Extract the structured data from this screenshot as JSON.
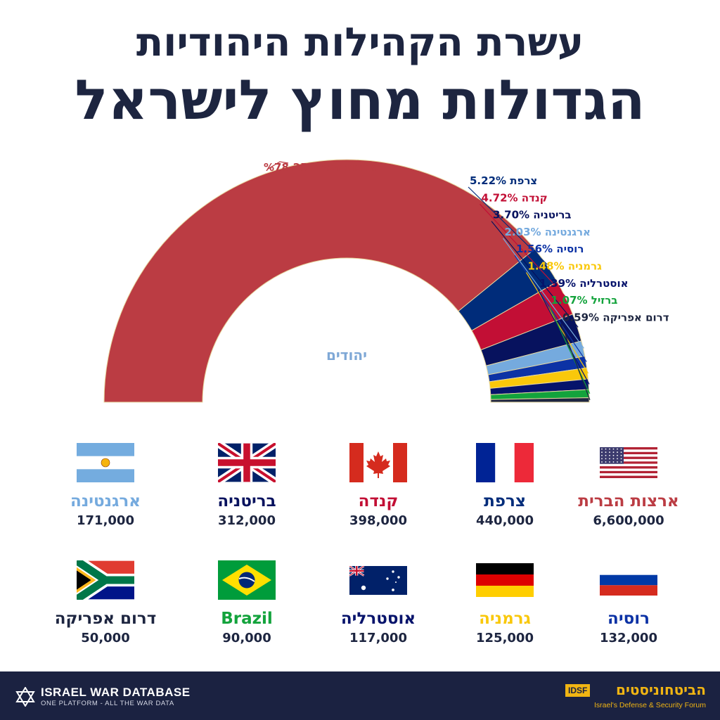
{
  "title": {
    "line1": "עשרת הקהילות היהודיות",
    "line2": "הגדולות מחוץ לישראל"
  },
  "chart_data": {
    "type": "pie",
    "variant": "half-donut",
    "center_label": "יהודים",
    "slices": [
      {
        "name": "ארצות הברית",
        "value": 78.25,
        "label": "%78.25",
        "color": "#bb3c43"
      },
      {
        "name": "צרפת",
        "value": 5.22,
        "label": "%5.22",
        "color": "#002c7a"
      },
      {
        "name": "קנדה",
        "value": 4.72,
        "label": "%4.72",
        "color": "#c20f35"
      },
      {
        "name": "בריטניה",
        "value": 3.7,
        "label": "%3.70",
        "color": "#07125e"
      },
      {
        "name": "ארגנטינה",
        "value": 2.03,
        "label": "%2.03",
        "color": "#75aade"
      },
      {
        "name": "רוסיה",
        "value": 1.56,
        "label": "%1.56",
        "color": "#0c32a5"
      },
      {
        "name": "גרמניה",
        "value": 1.48,
        "label": "%1.48",
        "color": "#f9c80b"
      },
      {
        "name": "אוסטרליה",
        "value": 1.39,
        "label": "%1.39",
        "color": "#06136b"
      },
      {
        "name": "ברזיל",
        "value": 1.07,
        "label": "%1.07",
        "color": "#13a33c"
      },
      {
        "name": "דרום אפריקה",
        "value": 0.59,
        "label": "%0.59",
        "color": "#1d2540"
      }
    ]
  },
  "countries": [
    {
      "name": "ארצות הברית",
      "population": "6,600,000",
      "color": "#bb3c43",
      "flag": "usa-flag-icon"
    },
    {
      "name": "צרפת",
      "population": "440,000",
      "color": "#002c7a",
      "flag": "france-flag-icon"
    },
    {
      "name": "קנדה",
      "population": "398,000",
      "color": "#c20f35",
      "flag": "canada-flag-icon"
    },
    {
      "name": "בריטניה",
      "population": "312,000",
      "color": "#07125e",
      "flag": "uk-flag-icon"
    },
    {
      "name": "ארגנטינה",
      "population": "171,000",
      "color": "#75aade",
      "flag": "argentina-flag-icon"
    },
    {
      "name": "רוסיה",
      "population": "132,000",
      "color": "#0c32a5",
      "flag": "russia-flag-icon"
    },
    {
      "name": "גרמניה",
      "population": "125,000",
      "color": "#f9c80b",
      "flag": "germany-flag-icon"
    },
    {
      "name": "אוסטרליה",
      "population": "117,000",
      "color": "#06136b",
      "flag": "australia-flag-icon"
    },
    {
      "name": "Brazil",
      "population": "90,000",
      "color": "#13a33c",
      "flag": "brazil-flag-icon"
    },
    {
      "name": "דרום אפריקה",
      "population": "50,000",
      "color": "#1d2540",
      "flag": "south-africa-flag-icon"
    }
  ],
  "footer": {
    "left_name": "ISRAEL WAR DATABASE",
    "left_tagline": "ONE PLATFORM - ALL THE WAR DATA",
    "right_badge": "IDSF",
    "right_hebrew": "הביטחוניסטים",
    "right_english": "Israel's Defense & Security Forum"
  }
}
